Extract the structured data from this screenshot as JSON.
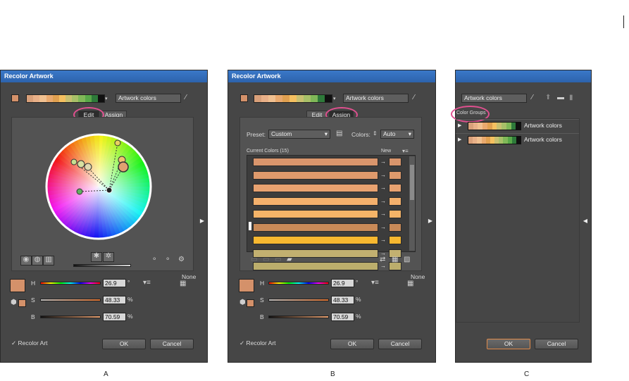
{
  "palette": [
    "#d9a07a",
    "#e8b088",
    "#f0c090",
    "#e9a96e",
    "#e0a050",
    "#f5c060",
    "#c9c070",
    "#a8c068",
    "#80b858",
    "#58a848",
    "#2e7a3a",
    "#101010"
  ],
  "palette_b": [
    "#d9a07a",
    "#e8b088",
    "#f0c090",
    "#e9a96e",
    "#e0a050",
    "#f5c060",
    "#c9c070",
    "#a8c068",
    "#80b858",
    "#2e7a3a",
    "#101010"
  ],
  "base_color": "#d4916a",
  "highlight_color": "#e0508f",
  "panel_a": {
    "title": "Recolor Artwork",
    "group_name": "Artwork colors",
    "tabs": {
      "edit": "Edit",
      "assign": "Assign"
    },
    "hsb": {
      "h_label": "H",
      "s_label": "S",
      "b_label": "B",
      "h_value": "26.9",
      "h_unit": "°",
      "s_value": "48.33",
      "s_unit": "%",
      "b_value": "70.59",
      "b_unit": "%"
    },
    "none_label": "None",
    "recolor_checkbox": "Recolor Art",
    "ok": "OK",
    "cancel": "Cancel",
    "caption": "A"
  },
  "panel_b": {
    "title": "Recolor Artwork",
    "group_name": "Artwork colors",
    "tabs": {
      "edit": "Edit",
      "assign": "Assign"
    },
    "preset_label": "Preset:",
    "preset_value": "Custom",
    "colors_label": "Colors:",
    "colors_value": "Auto",
    "current_colors": "Current Colors (15)",
    "new_label": "New",
    "rows": [
      "#d9956c",
      "#df9a6c",
      "#e8a270",
      "#f4b06c",
      "#f5b468",
      "#c98a58",
      "#f7b830",
      "#c2b070",
      "#bcae6c"
    ],
    "hsb": {
      "h_label": "H",
      "s_label": "S",
      "b_label": "B",
      "h_value": "26.9",
      "h_unit": "°",
      "s_value": "48.33",
      "s_unit": "%",
      "b_value": "70.59",
      "b_unit": "%"
    },
    "none_label": "None",
    "recolor_checkbox": "Recolor Art",
    "ok": "OK",
    "cancel": "Cancel",
    "caption": "B"
  },
  "panel_c": {
    "group_name": "Artwork colors",
    "color_groups_label": "Color Groups",
    "groups": [
      "Artwork colors",
      "Artwork colors"
    ],
    "ok": "OK",
    "cancel": "Cancel",
    "caption": "C"
  }
}
